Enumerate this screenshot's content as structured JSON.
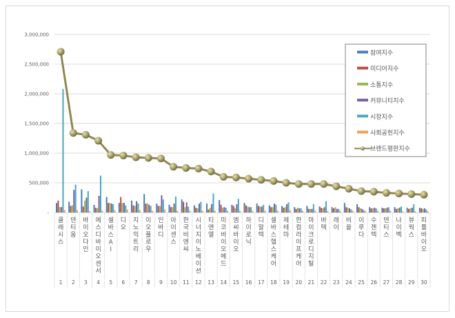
{
  "chart_data": {
    "type": "bar",
    "title": "",
    "xlabel": "",
    "ylabel": "",
    "ylim": [
      0,
      3000000
    ],
    "yticks": [
      "-",
      "500,000",
      "1,000,000",
      "1,500,000",
      "2,000,000",
      "2,500,000",
      "3,000,000"
    ],
    "grid": true,
    "legend_position": "right-inside-top",
    "categories": [
      "클래시스",
      "덴티움",
      "바이오다인",
      "에스디바이오센서",
      "셀바스AI",
      "디오",
      "지노믹트리",
      "이오플로우",
      "인바디",
      "아이센스",
      "한국비엔씨",
      "시너지이노베이션",
      "티앤엘",
      "미코바이오메드",
      "엠씨바이오",
      "하이로닉",
      "디알텍",
      "셀바스헬스케어",
      "제테마",
      "한컴라이프케어",
      "마이크로디지탈",
      "바텍",
      "레이",
      "비올",
      "이루다",
      "수젠텍",
      "덴티스",
      "나이벡",
      "뷰웍스",
      "피플바이오"
    ],
    "ranks": [
      1,
      2,
      3,
      4,
      5,
      6,
      7,
      8,
      9,
      10,
      11,
      12,
      13,
      14,
      15,
      16,
      17,
      18,
      19,
      20,
      21,
      22,
      23,
      24,
      25,
      26,
      27,
      28,
      29,
      30
    ],
    "series": [
      {
        "name": "참여지수",
        "color": "#4a7ebb",
        "kind": "bar",
        "values": [
          160000,
          180000,
          390000,
          130000,
          260000,
          160000,
          200000,
          310000,
          150000,
          130000,
          220000,
          120000,
          150000,
          210000,
          130000,
          160000,
          150000,
          120000,
          110000,
          90000,
          110000,
          100000,
          90000,
          160000,
          140000,
          90000,
          80000,
          90000,
          80000,
          80000
        ]
      },
      {
        "name": "미디어지수",
        "color": "#be4b48",
        "kind": "bar",
        "values": [
          200000,
          110000,
          100000,
          80000,
          160000,
          260000,
          120000,
          150000,
          110000,
          90000,
          180000,
          80000,
          50000,
          130000,
          110000,
          120000,
          110000,
          90000,
          80000,
          60000,
          60000,
          80000,
          70000,
          90000,
          90000,
          70000,
          70000,
          60000,
          60000,
          70000
        ]
      },
      {
        "name": "소통지수",
        "color": "#98b954",
        "kind": "bar",
        "values": [
          90000,
          120000,
          200000,
          70000,
          160000,
          160000,
          110000,
          150000,
          110000,
          90000,
          90000,
          70000,
          80000,
          80000,
          70000,
          100000,
          100000,
          90000,
          90000,
          80000,
          60000,
          70000,
          90000,
          80000,
          70000,
          70000,
          70000,
          70000,
          70000,
          60000
        ]
      },
      {
        "name": "커뮤니티지수",
        "color": "#7d60a0",
        "kind": "bar",
        "values": [
          90000,
          380000,
          250000,
          280000,
          150000,
          160000,
          190000,
          130000,
          290000,
          150000,
          170000,
          150000,
          140000,
          90000,
          140000,
          90000,
          100000,
          150000,
          140000,
          70000,
          60000,
          90000,
          60000,
          70000,
          60000,
          80000,
          80000,
          80000,
          80000,
          70000
        ]
      },
      {
        "name": "시장지수",
        "color": "#46aac5",
        "kind": "bar",
        "values": [
          2080000,
          470000,
          360000,
          620000,
          140000,
          120000,
          150000,
          110000,
          220000,
          270000,
          100000,
          180000,
          320000,
          80000,
          230000,
          90000,
          130000,
          130000,
          170000,
          70000,
          140000,
          190000,
          60000,
          50000,
          40000,
          70000,
          90000,
          100000,
          140000,
          50000
        ]
      },
      {
        "name": "사회공헌지수",
        "color": "#f59d56",
        "kind": "bar",
        "values": [
          40000,
          40000,
          20000,
          30000,
          40000,
          50000,
          40000,
          30000,
          50000,
          30000,
          30000,
          30000,
          30000,
          30000,
          30000,
          30000,
          30000,
          30000,
          40000,
          30000,
          30000,
          30000,
          30000,
          30000,
          30000,
          30000,
          30000,
          20000,
          20000,
          20000
        ]
      },
      {
        "name": "브랜드평판지수",
        "color": "#8f8650",
        "kind": "line",
        "values": [
          2710000,
          1340000,
          1310000,
          1210000,
          970000,
          960000,
          930000,
          920000,
          910000,
          770000,
          750000,
          740000,
          690000,
          600000,
          590000,
          570000,
          550000,
          530000,
          500000,
          480000,
          480000,
          480000,
          440000,
          400000,
          360000,
          350000,
          330000,
          320000,
          310000,
          300000
        ]
      }
    ]
  }
}
